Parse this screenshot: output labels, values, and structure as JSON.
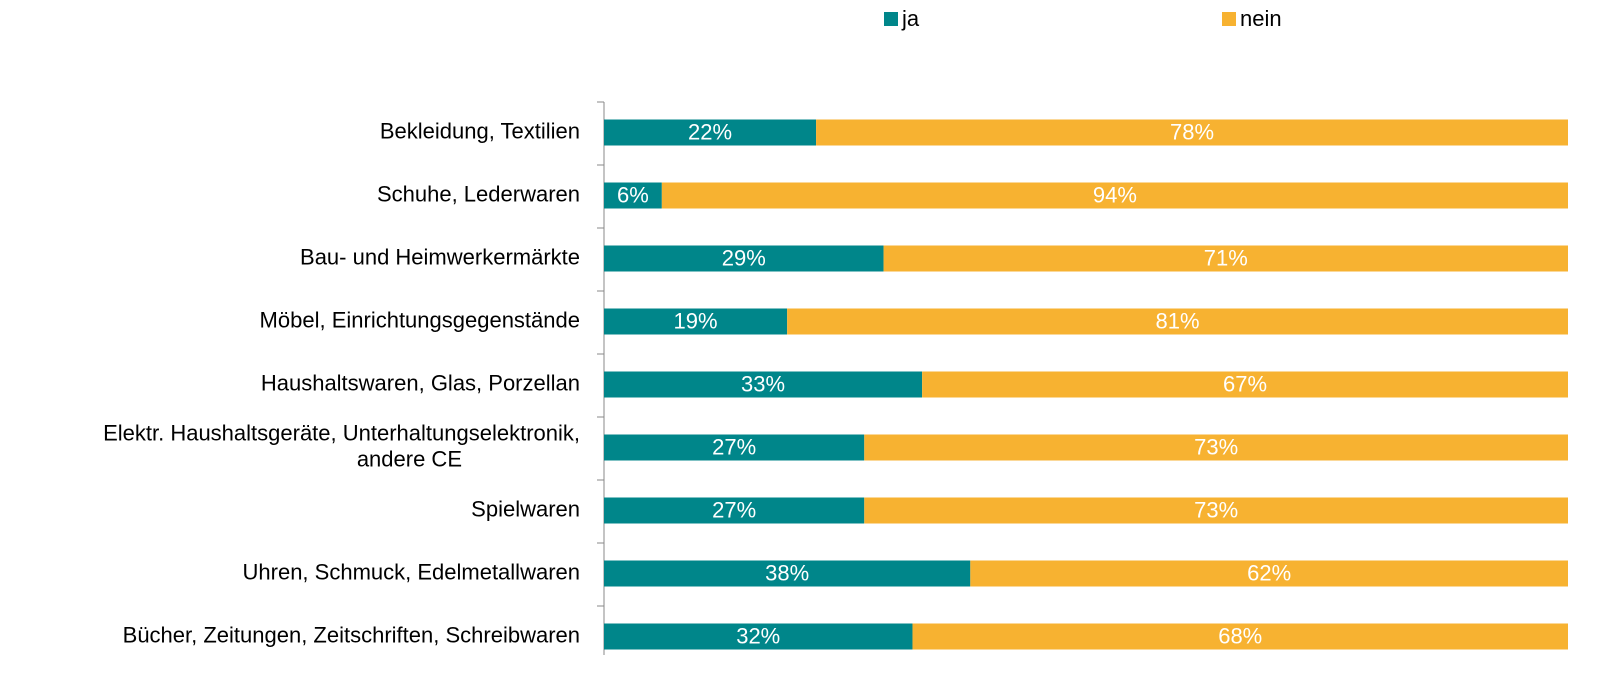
{
  "chart_data": {
    "type": "stacked_bar_horizontal",
    "categories": [
      "Bekleidung, Textilien",
      "Schuhe, Lederwaren",
      "Bau- und Heimwerkermärkte",
      "Möbel, Einrichtungsgegenstände",
      "Haushaltswaren, Glas, Porzellan",
      "Elektr. Haushaltsgeräte, Unterhaltungselektronik,\nandere CE",
      "Spielwaren",
      "Uhren, Schmuck, Edelmetallwaren",
      "Bücher, Zeitungen, Zeitschriften, Schreibwaren"
    ],
    "series": [
      {
        "name": "ja",
        "color": "#00868a",
        "values": [
          22,
          6,
          29,
          19,
          33,
          27,
          27,
          38,
          32
        ],
        "value_labels": [
          "22%",
          "6%",
          "29%",
          "19%",
          "33%",
          "27%",
          "27%",
          "38%",
          "32%"
        ]
      },
      {
        "name": "nein",
        "color": "#f7b231",
        "values": [
          78,
          94,
          71,
          81,
          67,
          73,
          73,
          62,
          68
        ],
        "value_labels": [
          "78%",
          "94%",
          "71%",
          "81%",
          "67%",
          "73%",
          "73%",
          "62%",
          "68%"
        ]
      }
    ],
    "xlim": [
      0,
      100
    ],
    "legend": "top"
  }
}
